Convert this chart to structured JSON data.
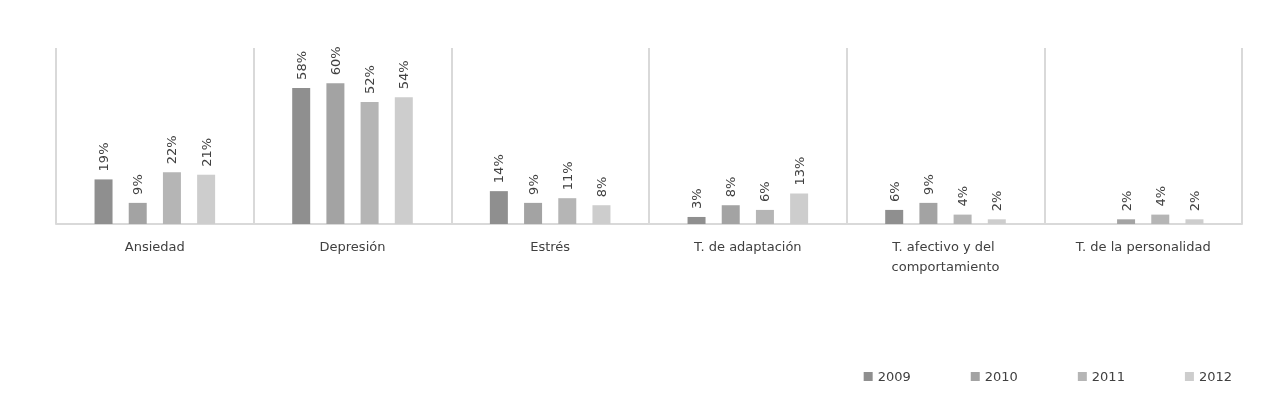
{
  "chart_data": {
    "type": "bar",
    "categories": [
      "Ansiedad",
      "Depresión",
      "Estrés",
      "T. de adaptación",
      "T. afectivo y del comportamiento",
      "T. de la personalidad"
    ],
    "series": [
      {
        "name": "2009",
        "color": "#8f8f8f",
        "values": [
          19,
          58,
          14,
          3,
          6,
          null
        ],
        "value_labels": [
          "19%",
          "58%",
          "14%",
          "3%",
          "6%",
          null
        ]
      },
      {
        "name": "2010",
        "color": "#a3a3a3",
        "values": [
          9,
          60,
          9,
          8,
          9,
          2
        ],
        "value_labels": [
          "9%",
          "60%",
          "9%",
          "8%",
          "9%",
          "2%"
        ]
      },
      {
        "name": "2011",
        "color": "#b5b5b5",
        "values": [
          22,
          52,
          11,
          6,
          4,
          4
        ],
        "value_labels": [
          "22%",
          "52%",
          "11%",
          "6%",
          "4%",
          "4%"
        ]
      },
      {
        "name": "2012",
        "color": "#cdcdcd",
        "values": [
          21,
          54,
          8,
          13,
          2,
          2
        ],
        "value_labels": [
          "21%",
          "54%",
          "8%",
          "13%",
          "2%",
          "2%"
        ]
      }
    ],
    "grid": "x",
    "legend": "bottom right"
  }
}
